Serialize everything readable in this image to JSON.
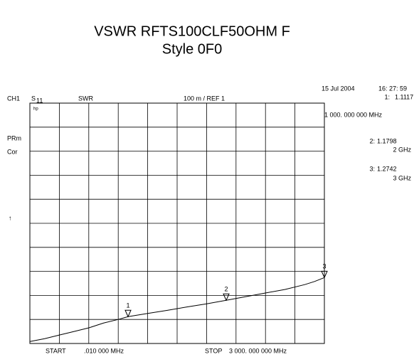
{
  "chart_data": {
    "type": "line",
    "title": "VSWR RFTS100CLF50OHM F",
    "subtitle": "Style 0F0",
    "channel": "CH1",
    "parameter": "S",
    "parameter_sub": "11",
    "format": "SWR",
    "scale": "100 m / REF 1",
    "date": "15 Jul 2004",
    "time": "16: 27: 59",
    "brand": "hp",
    "status": [
      "PRm",
      "Cor"
    ],
    "ref_arrow": "↑",
    "start_label": "START",
    "start_value": ".010 000 MHz",
    "stop_label": "STOP",
    "stop_value": "3 000. 000 000 MHz",
    "x": [
      0.01,
      150,
      300,
      450,
      600,
      750,
      900,
      1000,
      1200,
      1400,
      1600,
      1800,
      2000,
      2200,
      2400,
      2600,
      2800,
      2900,
      3000
    ],
    "series": [
      {
        "color": "#000000",
        "values": [
          1.008,
          1.02,
          1.035,
          1.05,
          1.065,
          1.085,
          1.1,
          1.1117,
          1.125,
          1.138,
          1.152,
          1.165,
          1.1798,
          1.195,
          1.21,
          1.225,
          1.245,
          1.258,
          1.2742
        ]
      }
    ],
    "markers": [
      {
        "number": "1",
        "label": "1:",
        "x": 1000,
        "value": 1.1117,
        "freq_label": "1 000. 000 000 MHz"
      },
      {
        "number": "2",
        "label": "2:",
        "x": 2000,
        "value": 1.1798,
        "freq_label": "2 GHz"
      },
      {
        "number": "3",
        "label": "3:",
        "x": 3000,
        "value": 1.2742,
        "freq_label": "3 GHz"
      }
    ],
    "xlim": [
      0.01,
      3000
    ],
    "ylim": [
      1,
      2
    ],
    "xticks": [
      0.01,
      300,
      600,
      900,
      1200,
      1500,
      1800,
      2100,
      2400,
      2700,
      3000
    ],
    "yticks": [
      1,
      1.1,
      1.2,
      1.3,
      1.4,
      1.5,
      1.6,
      1.7,
      1.8,
      1.9,
      2
    ],
    "grid": true
  }
}
